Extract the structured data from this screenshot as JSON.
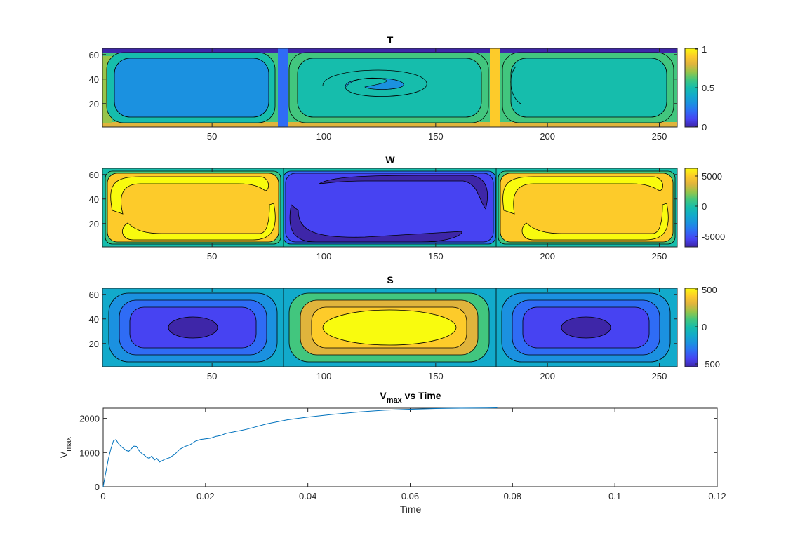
{
  "colors": {
    "parula": [
      "#3e26a8",
      "#4743f2",
      "#2f6cf5",
      "#1b91e0",
      "#12aacb",
      "#16bdac",
      "#42c67e",
      "#97c54a",
      "#e0b43c",
      "#fdcb2a",
      "#f9fb0e"
    ],
    "contour": "#000000",
    "line": "#0072bd",
    "axis": "#262626"
  },
  "chart_data": [
    {
      "type": "heatmap",
      "title": "T",
      "x_ticks": [
        "50",
        "100",
        "150",
        "200",
        "250"
      ],
      "y_ticks": [
        "20",
        "40",
        "60"
      ],
      "xlim": [
        1,
        258
      ],
      "ylim": [
        1,
        65
      ],
      "colorbar": {
        "range": [
          0,
          1
        ],
        "tick_labels": [
          "0",
          "0.5",
          "1"
        ]
      },
      "cells": [
        {
          "x_range": [
            1,
            82
          ],
          "value": 0.4,
          "rotation": "clockwise"
        },
        {
          "x_range": [
            82,
            177
          ],
          "value": 0.6,
          "rotation": "counter-clockwise"
        },
        {
          "x_range": [
            177,
            258
          ],
          "value": 0.6,
          "rotation": "clockwise"
        }
      ]
    },
    {
      "type": "heatmap",
      "title": "W",
      "x_ticks": [
        "50",
        "100",
        "150",
        "200",
        "250"
      ],
      "y_ticks": [
        "20",
        "40",
        "60"
      ],
      "xlim": [
        1,
        258
      ],
      "ylim": [
        1,
        65
      ],
      "colorbar": {
        "range": [
          -6000,
          6000
        ],
        "tick_labels": [
          "5000",
          "0",
          "-5000"
        ]
      },
      "cells": [
        {
          "x_range": [
            1,
            82
          ],
          "peak": 5500
        },
        {
          "x_range": [
            82,
            177
          ],
          "peak": -5500
        },
        {
          "x_range": [
            177,
            258
          ],
          "peak": 5500
        }
      ]
    },
    {
      "type": "heatmap",
      "title": "S",
      "x_ticks": [
        "50",
        "100",
        "150",
        "200",
        "250"
      ],
      "y_ticks": [
        "20",
        "40",
        "60"
      ],
      "xlim": [
        1,
        258
      ],
      "ylim": [
        1,
        65
      ],
      "colorbar": {
        "range": [
          -550,
          550
        ],
        "tick_labels": [
          "500",
          "0",
          "-500"
        ]
      },
      "cells": [
        {
          "x_range": [
            1,
            82
          ],
          "peak": -480
        },
        {
          "x_range": [
            82,
            177
          ],
          "peak": 520
        },
        {
          "x_range": [
            177,
            258
          ],
          "peak": -480
        }
      ]
    },
    {
      "type": "line",
      "title_main": "V",
      "title_sub": "max",
      "title_rest": " vs Time",
      "xlabel": "Time",
      "ylabel_main": "V",
      "ylabel_sub": "max",
      "xlim": [
        0,
        0.12
      ],
      "ylim": [
        0,
        2300
      ],
      "x_ticks": [
        "0",
        "0.02",
        "0.04",
        "0.06",
        "0.08",
        "0.1",
        "0.12"
      ],
      "y_ticks": [
        "0",
        "1000",
        "2000"
      ],
      "series": [
        {
          "x": [
            0,
            0.0005,
            0.001,
            0.0015,
            0.002,
            0.0025,
            0.003,
            0.0035,
            0.004,
            0.0045,
            0.005,
            0.0055,
            0.006,
            0.0065,
            0.007,
            0.0075,
            0.008,
            0.0085,
            0.009,
            0.0095,
            0.01,
            0.0105,
            0.011,
            0.0115,
            0.012,
            0.013,
            0.014,
            0.015,
            0.016,
            0.017,
            0.018,
            0.019,
            0.02,
            0.021,
            0.022,
            0.023,
            0.024,
            0.025,
            0.026,
            0.027,
            0.028,
            0.03,
            0.032,
            0.034,
            0.036,
            0.038,
            0.04,
            0.045,
            0.05,
            0.055,
            0.06,
            0.065,
            0.07,
            0.075,
            0.077
          ],
          "y": [
            0,
            400,
            800,
            1100,
            1340,
            1380,
            1260,
            1180,
            1120,
            1060,
            1040,
            1110,
            1190,
            1180,
            1060,
            980,
            930,
            860,
            830,
            900,
            780,
            830,
            720,
            760,
            800,
            850,
            950,
            1100,
            1180,
            1230,
            1330,
            1380,
            1400,
            1420,
            1470,
            1500,
            1560,
            1590,
            1620,
            1650,
            1680,
            1760,
            1840,
            1900,
            1960,
            2000,
            2040,
            2120,
            2190,
            2240,
            2270,
            2290,
            2300,
            2305,
            2310
          ]
        }
      ]
    }
  ]
}
